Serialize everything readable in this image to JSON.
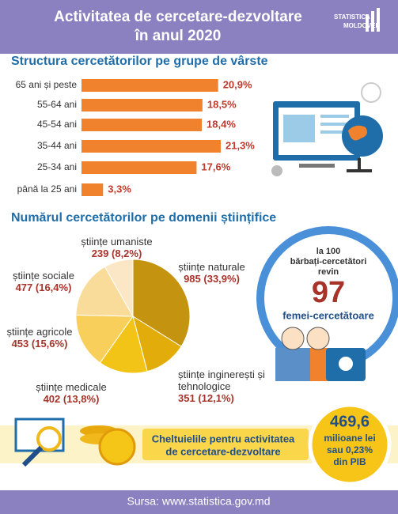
{
  "header": {
    "title_lines": [
      "Activitatea de cercetare-dezvoltare",
      "în anul 2020"
    ],
    "logo_lines": [
      "STATISTICA",
      "MOLDOVEI"
    ]
  },
  "chart_data": [
    {
      "type": "bar",
      "title": "Structura cercetătorilor pe grupe de vârste",
      "categories": [
        "65 ani și peste",
        "55-64 ani",
        "45-54 ani",
        "35-44 ani",
        "25-34 ani",
        "până la 25 ani"
      ],
      "values": [
        20.9,
        18.5,
        18.4,
        21.3,
        17.6,
        3.3
      ],
      "value_labels": [
        "20,9%",
        "18,5%",
        "18,4%",
        "21,3%",
        "17,6%",
        "3,3%"
      ],
      "color": "#f0822d"
    },
    {
      "type": "pie",
      "title": "Numărul cercetătorilor pe domenii științifice",
      "categories": [
        "științe naturale",
        "științe inginerești și tehnologice",
        "științe medicale",
        "științe agricole",
        "științe sociale",
        "științe umaniste"
      ],
      "values": [
        985,
        351,
        402,
        453,
        477,
        239
      ],
      "percent_labels": [
        "(33,9%)",
        "(12,1%)",
        "(13,8%)",
        "(15,6%)",
        "(16,4%)",
        "(8,2%)"
      ],
      "colors": [
        "#c4930f",
        "#e2ad0a",
        "#f2c418",
        "#f7cf5a",
        "#f9dc9a",
        "#fbe7c6"
      ]
    }
  ],
  "callout": {
    "lines": [
      "la 100",
      "bărbați-cercetători",
      "revin"
    ],
    "value": 97,
    "footer": "femei-cercetătoare"
  },
  "expenses": {
    "lines": [
      "Cheltuielile pentru activitatea",
      "de cercetare-dezvoltare"
    ],
    "amount": "469,6",
    "unit_lines": [
      "milioane lei",
      "sau 0,23%",
      "din PIB"
    ]
  },
  "footer": {
    "source": "Sursa: www.statistica.gov.md"
  }
}
